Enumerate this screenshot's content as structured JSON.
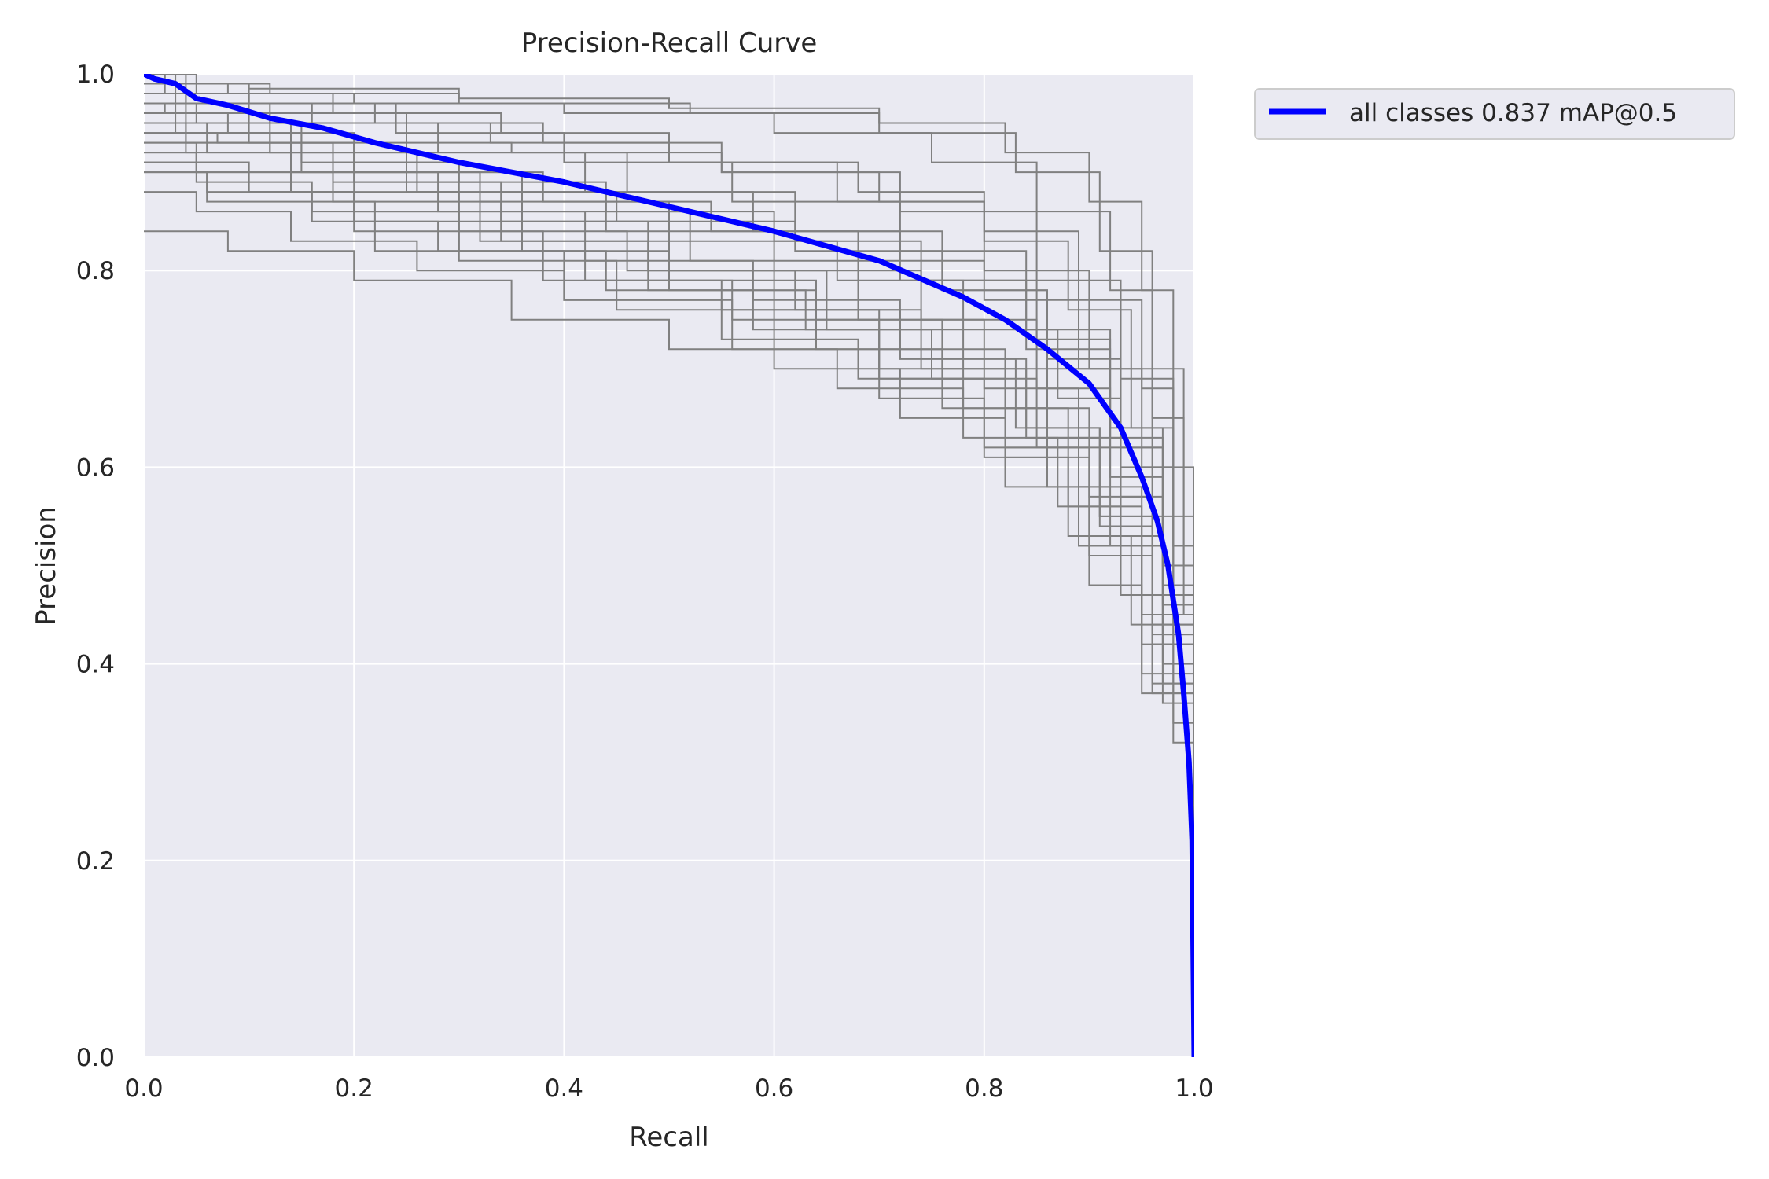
{
  "chart_data": {
    "type": "line",
    "title": "Precision-Recall Curve",
    "xlabel": "Recall",
    "ylabel": "Precision",
    "xlim": [
      0,
      1
    ],
    "ylim": [
      0,
      1
    ],
    "xticks": [
      "0.0",
      "0.2",
      "0.4",
      "0.6",
      "0.8",
      "1.0"
    ],
    "yticks": [
      "0.0",
      "0.2",
      "0.4",
      "0.6",
      "0.8",
      "1.0"
    ],
    "grid": true,
    "legend_placement": "outside-top-right",
    "colors": {
      "background": "#eaeaf2",
      "grid": "#ffffff",
      "class_curves": "#808080",
      "all_classes": "#0000ff"
    },
    "series": [
      {
        "name": "all classes 0.837 mAP@0.5",
        "x": [
          0,
          0.01,
          0.03,
          0.05,
          0.08,
          0.12,
          0.17,
          0.22,
          0.3,
          0.4,
          0.5,
          0.6,
          0.7,
          0.78,
          0.82,
          0.86,
          0.9,
          0.93,
          0.95,
          0.965,
          0.975,
          0.985,
          0.99,
          0.995,
          0.998,
          1.0
        ],
        "y": [
          1.0,
          0.995,
          0.99,
          0.975,
          0.968,
          0.955,
          0.945,
          0.93,
          0.91,
          0.89,
          0.865,
          0.84,
          0.81,
          0.773,
          0.75,
          0.72,
          0.685,
          0.64,
          0.59,
          0.545,
          0.5,
          0.43,
          0.37,
          0.3,
          0.22,
          0.0
        ]
      }
    ],
    "class_curves": [
      {
        "x": [
          0,
          0.02,
          0.1,
          0.3,
          0.5,
          0.7,
          0.82,
          0.9,
          0.95,
          0.98,
          1.0
        ],
        "y": [
          1.0,
          0.99,
          0.985,
          0.975,
          0.965,
          0.95,
          0.92,
          0.87,
          0.78,
          0.6,
          0.35
        ]
      },
      {
        "x": [
          0,
          0.05,
          0.2,
          0.4,
          0.6,
          0.75,
          0.85,
          0.92,
          0.96,
          0.99,
          1.0
        ],
        "y": [
          1.0,
          0.98,
          0.97,
          0.96,
          0.94,
          0.91,
          0.86,
          0.78,
          0.65,
          0.45,
          0.3
        ]
      },
      {
        "x": [
          0,
          0.03,
          0.15,
          0.35,
          0.55,
          0.7,
          0.8,
          0.88,
          0.94,
          0.98,
          1.0
        ],
        "y": [
          0.95,
          0.94,
          0.93,
          0.92,
          0.9,
          0.87,
          0.83,
          0.76,
          0.64,
          0.48,
          0.35
        ]
      },
      {
        "x": [
          0,
          0.04,
          0.12,
          0.25,
          0.45,
          0.62,
          0.76,
          0.86,
          0.93,
          0.97,
          1.0
        ],
        "y": [
          0.98,
          0.96,
          0.92,
          0.88,
          0.85,
          0.82,
          0.78,
          0.71,
          0.62,
          0.5,
          0.4
        ]
      },
      {
        "x": [
          0,
          0.05,
          0.1,
          0.2,
          0.38,
          0.55,
          0.7,
          0.82,
          0.9,
          0.96,
          1.0
        ],
        "y": [
          0.92,
          0.91,
          0.88,
          0.84,
          0.79,
          0.76,
          0.72,
          0.66,
          0.57,
          0.44,
          0.28
        ]
      },
      {
        "x": [
          0,
          0.08,
          0.2,
          0.35,
          0.5,
          0.66,
          0.78,
          0.87,
          0.93,
          0.97,
          1.0
        ],
        "y": [
          0.84,
          0.82,
          0.79,
          0.75,
          0.72,
          0.68,
          0.63,
          0.56,
          0.47,
          0.36,
          0.22
        ]
      },
      {
        "x": [
          0,
          0.03,
          0.14,
          0.28,
          0.42,
          0.58,
          0.72,
          0.84,
          0.91,
          0.96,
          1.0
        ],
        "y": [
          0.96,
          0.95,
          0.9,
          0.86,
          0.81,
          0.77,
          0.71,
          0.64,
          0.55,
          0.43,
          0.3
        ]
      },
      {
        "x": [
          0,
          0.06,
          0.18,
          0.32,
          0.48,
          0.63,
          0.75,
          0.85,
          0.92,
          0.97,
          1.0
        ],
        "y": [
          0.93,
          0.92,
          0.89,
          0.83,
          0.78,
          0.74,
          0.69,
          0.62,
          0.52,
          0.38,
          0.25
        ]
      },
      {
        "x": [
          0,
          0.1,
          0.2,
          0.3,
          0.45,
          0.6,
          0.72,
          0.82,
          0.9,
          0.95,
          1.0
        ],
        "y": [
          0.91,
          0.88,
          0.85,
          0.81,
          0.76,
          0.7,
          0.65,
          0.58,
          0.48,
          0.37,
          0.24
        ]
      },
      {
        "x": [
          0,
          0.04,
          0.16,
          0.33,
          0.5,
          0.68,
          0.8,
          0.89,
          0.95,
          0.98,
          1.0
        ],
        "y": [
          1.0,
          0.97,
          0.95,
          0.93,
          0.91,
          0.88,
          0.84,
          0.77,
          0.68,
          0.52,
          0.38
        ]
      },
      {
        "x": [
          0,
          0.05,
          0.15,
          0.3,
          0.48,
          0.62,
          0.74,
          0.84,
          0.91,
          0.96,
          1.0
        ],
        "y": [
          0.97,
          0.95,
          0.91,
          0.85,
          0.8,
          0.76,
          0.7,
          0.63,
          0.54,
          0.42,
          0.3
        ]
      },
      {
        "x": [
          0,
          0.02,
          0.1,
          0.25,
          0.42,
          0.58,
          0.72,
          0.84,
          0.92,
          0.97,
          1.0
        ],
        "y": [
          0.99,
          0.98,
          0.96,
          0.92,
          0.88,
          0.84,
          0.79,
          0.72,
          0.62,
          0.47,
          0.33
        ]
      },
      {
        "x": [
          0,
          0.06,
          0.22,
          0.4,
          0.56,
          0.7,
          0.8,
          0.88,
          0.94,
          0.98,
          1.0
        ],
        "y": [
          0.9,
          0.87,
          0.82,
          0.77,
          0.72,
          0.67,
          0.61,
          0.53,
          0.44,
          0.32,
          0.2
        ]
      },
      {
        "x": [
          0,
          0.07,
          0.18,
          0.3,
          0.44,
          0.6,
          0.74,
          0.85,
          0.92,
          0.97,
          1.0
        ],
        "y": [
          0.94,
          0.93,
          0.91,
          0.89,
          0.86,
          0.83,
          0.79,
          0.73,
          0.64,
          0.5,
          0.36
        ]
      },
      {
        "x": [
          0,
          0.03,
          0.12,
          0.3,
          0.52,
          0.7,
          0.83,
          0.91,
          0.96,
          0.99,
          1.0
        ],
        "y": [
          1.0,
          0.99,
          0.98,
          0.97,
          0.96,
          0.94,
          0.9,
          0.82,
          0.7,
          0.5,
          0.4
        ]
      },
      {
        "x": [
          0,
          0.05,
          0.14,
          0.26,
          0.4,
          0.55,
          0.68,
          0.8,
          0.89,
          0.95,
          1.0
        ],
        "y": [
          0.88,
          0.86,
          0.83,
          0.8,
          0.77,
          0.73,
          0.69,
          0.62,
          0.52,
          0.39,
          0.26
        ]
      },
      {
        "x": [
          0,
          0.02,
          0.08,
          0.2,
          0.36,
          0.52,
          0.68,
          0.8,
          0.89,
          0.95,
          1.0
        ],
        "y": [
          0.97,
          0.96,
          0.94,
          0.9,
          0.86,
          0.81,
          0.75,
          0.68,
          0.58,
          0.45,
          0.32
        ]
      },
      {
        "x": [
          0,
          0.04,
          0.15,
          0.32,
          0.5,
          0.66,
          0.78,
          0.87,
          0.93,
          0.97,
          1.0
        ],
        "y": [
          0.95,
          0.93,
          0.9,
          0.87,
          0.83,
          0.79,
          0.74,
          0.67,
          0.57,
          0.43,
          0.3
        ]
      },
      {
        "x": [
          0,
          0.05,
          0.2,
          0.36,
          0.5,
          0.64,
          0.76,
          0.86,
          0.93,
          0.98,
          1.0
        ],
        "y": [
          0.93,
          0.9,
          0.86,
          0.82,
          0.78,
          0.72,
          0.66,
          0.58,
          0.47,
          0.34,
          0.23
        ]
      },
      {
        "x": [
          0,
          0.03,
          0.1,
          0.22,
          0.38,
          0.55,
          0.72,
          0.85,
          0.93,
          0.98,
          1.0
        ],
        "y": [
          0.99,
          0.98,
          0.97,
          0.95,
          0.93,
          0.9,
          0.86,
          0.79,
          0.69,
          0.52,
          0.4
        ]
      },
      {
        "x": [
          0,
          0.06,
          0.16,
          0.28,
          0.42,
          0.56,
          0.7,
          0.82,
          0.9,
          0.96,
          1.0
        ],
        "y": [
          0.9,
          0.88,
          0.85,
          0.82,
          0.79,
          0.75,
          0.7,
          0.62,
          0.51,
          0.37,
          0.25
        ]
      },
      {
        "x": [
          0,
          0.04,
          0.12,
          0.26,
          0.44,
          0.6,
          0.74,
          0.85,
          0.92,
          0.97,
          1.0
        ],
        "y": [
          0.96,
          0.94,
          0.92,
          0.88,
          0.84,
          0.8,
          0.75,
          0.68,
          0.59,
          0.46,
          0.34
        ]
      },
      {
        "x": [
          0,
          0.02,
          0.1,
          0.24,
          0.4,
          0.56,
          0.72,
          0.84,
          0.92,
          0.97,
          1.0
        ],
        "y": [
          1.0,
          0.99,
          0.97,
          0.94,
          0.91,
          0.87,
          0.82,
          0.74,
          0.63,
          0.48,
          0.37
        ]
      },
      {
        "x": [
          0,
          0.05,
          0.18,
          0.34,
          0.5,
          0.64,
          0.76,
          0.86,
          0.93,
          0.97,
          1.0
        ],
        "y": [
          0.92,
          0.9,
          0.87,
          0.83,
          0.79,
          0.75,
          0.7,
          0.63,
          0.53,
          0.4,
          0.28
        ]
      },
      {
        "x": [
          0,
          0.03,
          0.12,
          0.28,
          0.46,
          0.62,
          0.76,
          0.86,
          0.93,
          0.98,
          1.0
        ],
        "y": [
          0.98,
          0.97,
          0.95,
          0.92,
          0.88,
          0.84,
          0.78,
          0.7,
          0.6,
          0.45,
          0.33
        ]
      },
      {
        "x": [
          0,
          0.04,
          0.14,
          0.3,
          0.46,
          0.6,
          0.72,
          0.83,
          0.91,
          0.96,
          1.0
        ],
        "y": [
          0.94,
          0.92,
          0.88,
          0.84,
          0.8,
          0.76,
          0.71,
          0.64,
          0.55,
          0.42,
          0.29
        ]
      },
      {
        "x": [
          0,
          0.02,
          0.08,
          0.18,
          0.34,
          0.5,
          0.66,
          0.8,
          0.9,
          0.96,
          1.0
        ],
        "y": [
          0.99,
          0.99,
          0.98,
          0.96,
          0.94,
          0.91,
          0.87,
          0.8,
          0.7,
          0.55,
          0.42
        ]
      },
      {
        "x": [
          0,
          0.05,
          0.16,
          0.3,
          0.44,
          0.58,
          0.7,
          0.82,
          0.9,
          0.96,
          1.0
        ],
        "y": [
          0.91,
          0.89,
          0.86,
          0.82,
          0.78,
          0.74,
          0.69,
          0.61,
          0.51,
          0.38,
          0.26
        ]
      },
      {
        "x": [
          0,
          0.06,
          0.2,
          0.38,
          0.54,
          0.68,
          0.8,
          0.89,
          0.95,
          0.98,
          1.0
        ],
        "y": [
          0.95,
          0.93,
          0.9,
          0.87,
          0.84,
          0.81,
          0.77,
          0.7,
          0.6,
          0.44,
          0.3
        ]
      },
      {
        "x": [
          0,
          0.03,
          0.1,
          0.2,
          0.34,
          0.5,
          0.65,
          0.78,
          0.88,
          0.95,
          1.0
        ],
        "y": [
          0.97,
          0.96,
          0.93,
          0.89,
          0.85,
          0.8,
          0.74,
          0.66,
          0.56,
          0.42,
          0.3
        ]
      }
    ]
  }
}
